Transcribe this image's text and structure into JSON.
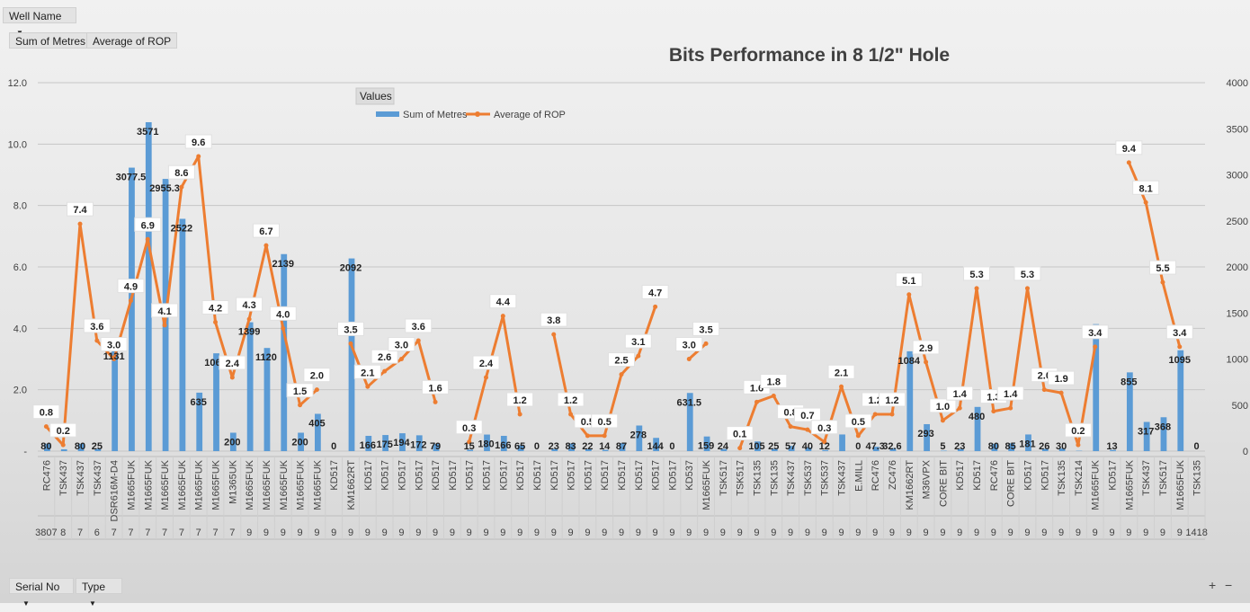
{
  "pivot": {
    "filter_field": "Well Name",
    "value_fields": [
      "Sum of Metres",
      "Average of ROP"
    ],
    "row_fields": [
      "Serial No",
      "Type"
    ],
    "zoom_in": "+",
    "zoom_out": "−"
  },
  "chart_data": {
    "type": "bar+line",
    "title": "Bits Performance in 8 1/2\" Hole",
    "legend_title": "Values",
    "legend_position": "top-center",
    "grid": true,
    "left_axis": {
      "ticks": [
        "12.0",
        "10.0",
        "8.0",
        "6.0",
        "4.0",
        "2.0",
        "-"
      ],
      "range": [
        0,
        12
      ]
    },
    "right_axis": {
      "ticks": [
        "4000",
        "3500",
        "3000",
        "2500",
        "2000",
        "1500",
        "1000",
        "500",
        "0"
      ],
      "range": [
        0,
        4000
      ]
    },
    "categories": [
      "RC476",
      "TSK437",
      "TSK437",
      "TSK437",
      "DSR616M-D4",
      "M1665FUK",
      "M1665FUK",
      "M1665FUK",
      "M1665FUK",
      "M1665FUK",
      "M1665FUK",
      "M1365UK",
      "M1665FUK",
      "M1665FUK",
      "M1665FUK",
      "M1665FUK",
      "M1665FUK",
      "KD517",
      "KM1662RT",
      "KD517",
      "KD517",
      "KD517",
      "KD517",
      "KD517",
      "KD517",
      "KD517",
      "KD517",
      "KD517",
      "KD517",
      "KD517",
      "KD517",
      "KD517",
      "KD517",
      "KD517",
      "KD517",
      "KD517",
      "KD517",
      "KD517",
      "KD537",
      "M1665FUK",
      "TSK517",
      "TSK517",
      "TSK135",
      "TSK135",
      "TSK437",
      "TSK537",
      "TSK537",
      "TSK437",
      "E.MILL",
      "RC476",
      "ZC476",
      "KM1662RT",
      "M36VPX",
      "CORE BIT",
      "KD517",
      "KD517",
      "RC476",
      "CORE BIT",
      "KD517",
      "KD517",
      "TSK135",
      "TSK214",
      "M1665FUK",
      "KD517",
      "M1665FUK",
      "TSK437",
      "TSK517",
      "M1665FUK",
      "TSK135"
    ],
    "serial_row": [
      "3807",
      "8",
      "7",
      "6",
      "7",
      "7",
      "7",
      "7",
      "7",
      "7",
      "7",
      "7",
      "9",
      "9",
      "9",
      "9",
      "9",
      "9",
      "9",
      "9",
      "9",
      "9",
      "9",
      "9",
      "9",
      "9",
      "9",
      "9",
      "9",
      "9",
      "9",
      "9",
      "9",
      "9",
      "9",
      "9",
      "9",
      "9",
      "9",
      "9",
      "9",
      "9",
      "9",
      "9",
      "9",
      "9",
      "9",
      "9",
      "9",
      "9",
      "9",
      "9",
      "9",
      "9",
      "9",
      "9",
      "9",
      "9",
      "9",
      "9",
      "9",
      "9",
      "9",
      "9",
      "9",
      "9",
      "9",
      "9",
      "1418"
    ],
    "series": [
      {
        "name": "Sum of Metres",
        "axis": "right",
        "color": "#5b9bd5",
        "values": [
          80,
          20,
          80,
          25,
          1131,
          3077.5,
          3571,
          2955.3,
          2522,
          635,
          1062,
          200,
          1399,
          1120,
          2139,
          200,
          405,
          0,
          2092,
          166,
          175,
          194,
          172,
          79,
          0,
          15,
          180,
          166,
          65,
          0,
          23,
          83,
          22,
          14,
          87,
          278,
          144,
          0,
          631.5,
          159,
          24,
          0.1,
          105,
          25,
          57,
          40,
          12,
          181,
          0,
          47.3,
          32.6,
          1084,
          293,
          5,
          23,
          480,
          80,
          85,
          181,
          26,
          30,
          4,
          1379,
          13,
          855,
          317,
          368,
          1095,
          0
        ],
        "labels": [
          "80",
          "",
          "80",
          "25",
          "1131",
          "3077.5",
          "3571",
          "2955.3",
          "2522",
          "635",
          "1062",
          "200",
          "1399",
          "1120",
          "2139",
          "200",
          "405",
          "0",
          "2092",
          "166",
          "175",
          "194",
          "172",
          "79",
          "",
          "15",
          "180",
          "166",
          "65",
          "0",
          "23",
          "83",
          "22",
          "14",
          "87",
          "278",
          "144",
          "0",
          "631.5",
          "159",
          "24",
          "",
          "105",
          "25",
          "57",
          "40",
          "12",
          "",
          "0",
          "47.3",
          "32.6",
          "1084",
          "293",
          "5",
          "23",
          "480",
          "80",
          "85",
          "181",
          "26",
          "30",
          "",
          "1379",
          "13",
          "855",
          "317",
          "368",
          "1095",
          "0"
        ]
      },
      {
        "name": "Average of ROP",
        "axis": "left",
        "color": "#ed7d31",
        "values": [
          0.8,
          0.2,
          7.4,
          3.6,
          3.0,
          4.9,
          6.9,
          4.1,
          8.6,
          9.6,
          4.2,
          2.4,
          4.3,
          6.7,
          4.0,
          1.5,
          2.0,
          null,
          3.5,
          2.1,
          2.6,
          3.0,
          3.6,
          1.6,
          null,
          0.3,
          2.4,
          4.4,
          1.2,
          null,
          3.8,
          1.2,
          0.5,
          0.5,
          2.5,
          3.1,
          4.7,
          null,
          3.0,
          3.5,
          null,
          0.1,
          1.6,
          1.8,
          0.8,
          0.7,
          0.3,
          2.1,
          0.5,
          1.2,
          1.2,
          5.1,
          2.9,
          1.0,
          1.4,
          5.3,
          1.3,
          1.4,
          5.3,
          2.0,
          1.9,
          0.2,
          3.4,
          null,
          9.4,
          8.1,
          5.5,
          3.4,
          null
        ],
        "labels": [
          "0.8",
          "0.2",
          "7.4",
          "3.6",
          "3.0",
          "4.9",
          "6.9",
          "4.1",
          "8.6",
          "9.6",
          "4.2",
          "2.4",
          "4.3",
          "6.7",
          "4.0",
          "1.5",
          "2.0",
          "",
          "3.5",
          "2.1",
          "2.6",
          "3.0",
          "3.6",
          "1.6",
          "",
          "0.3",
          "2.4",
          "4.4",
          "1.2",
          "",
          "3.8",
          "1.2",
          "0.5",
          "0.5",
          "2.5",
          "3.1",
          "4.7",
          "",
          "3.0",
          "3.5",
          "",
          "0.1",
          "1.6",
          "1.8",
          "0.8",
          "0.7",
          "0.3",
          "2.1",
          "0.5",
          "1.2",
          "1.2",
          "5.1",
          "2.9",
          "1.0",
          "1.4",
          "5.3",
          "1.3",
          "1.4",
          "5.3",
          "2.0",
          "1.9",
          "0.2",
          "3.4",
          "",
          "9.4",
          "8.1",
          "5.5",
          "3.4",
          ""
        ]
      }
    ]
  }
}
